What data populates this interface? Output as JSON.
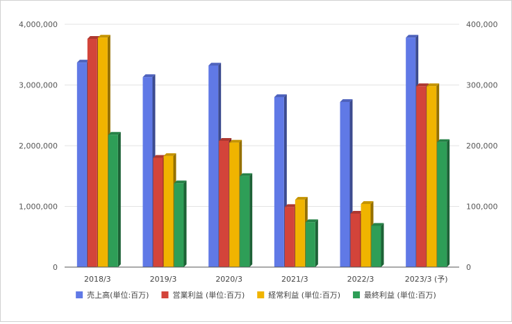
{
  "chart_data": {
    "type": "bar",
    "style": "3d-clustered-column",
    "categories": [
      "2018/3",
      "2019/3",
      "2020/3",
      "2021/3",
      "2022/3",
      "2023/3 (予)"
    ],
    "series": [
      {
        "name": "売上高(単位:百万)",
        "axis": "left",
        "color": "#6079e6",
        "values": [
          3370000,
          3130000,
          3320000,
          2800000,
          2720000,
          3780000
        ]
      },
      {
        "name": "営業利益 (単位:百万)",
        "axis": "right",
        "color": "#d3443a",
        "values": [
          376000,
          180000,
          208000,
          99000,
          88000,
          298000
        ]
      },
      {
        "name": "経常利益 (単位:百万)",
        "axis": "right",
        "color": "#f0b400",
        "values": [
          378000,
          183000,
          205000,
          111000,
          104000,
          298000
        ]
      },
      {
        "name": "最終利益 (単位:百万)",
        "axis": "right",
        "color": "#2e9e57",
        "values": [
          218000,
          138000,
          150000,
          74000,
          68000,
          206000
        ]
      }
    ],
    "y_left": {
      "min": 0,
      "max": 4000000,
      "ticks": [
        0,
        1000000,
        2000000,
        3000000,
        4000000
      ],
      "tick_labels": [
        "0",
        "1,000,000",
        "2,000,000",
        "3,000,000",
        "4,000,000"
      ]
    },
    "y_right": {
      "min": 0,
      "max": 400000,
      "ticks": [
        0,
        100000,
        200000,
        300000,
        400000
      ],
      "tick_labels": [
        "0",
        "100,000",
        "200,000",
        "300,000",
        "400,000"
      ]
    },
    "grid": true,
    "legend_position": "bottom",
    "title": "",
    "xlabel": "",
    "ylabel": ""
  }
}
